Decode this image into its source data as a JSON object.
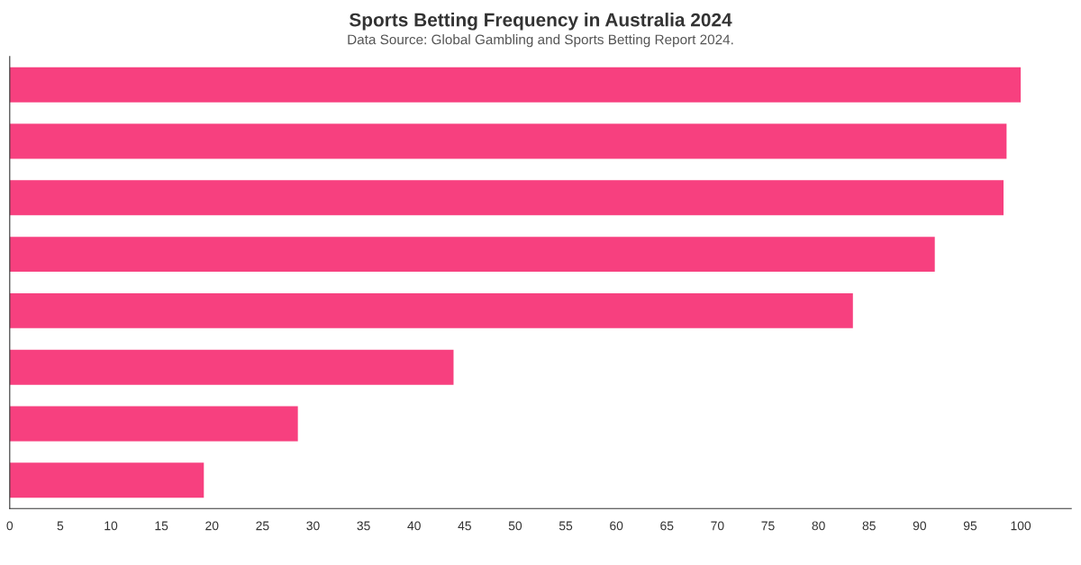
{
  "chart_data": {
    "type": "bar",
    "orientation": "horizontal",
    "title": "Sports Betting Frequency in Australia 2024",
    "subtitle": "Data Source: Global Gambling and Sports Betting Report 2024.",
    "categories": [
      null,
      null,
      null,
      null,
      null,
      null,
      null,
      null
    ],
    "values": [
      100,
      98.6,
      98.3,
      91.5,
      83.4,
      43.9,
      28.5,
      19.2
    ],
    "color": "#f7407f",
    "xlim": [
      0,
      105
    ],
    "xticks": [
      0,
      5,
      10,
      15,
      20,
      25,
      30,
      35,
      40,
      45,
      50,
      55,
      60,
      65,
      70,
      75,
      80,
      85,
      90,
      95,
      100
    ],
    "grid": false,
    "legend": false
  }
}
